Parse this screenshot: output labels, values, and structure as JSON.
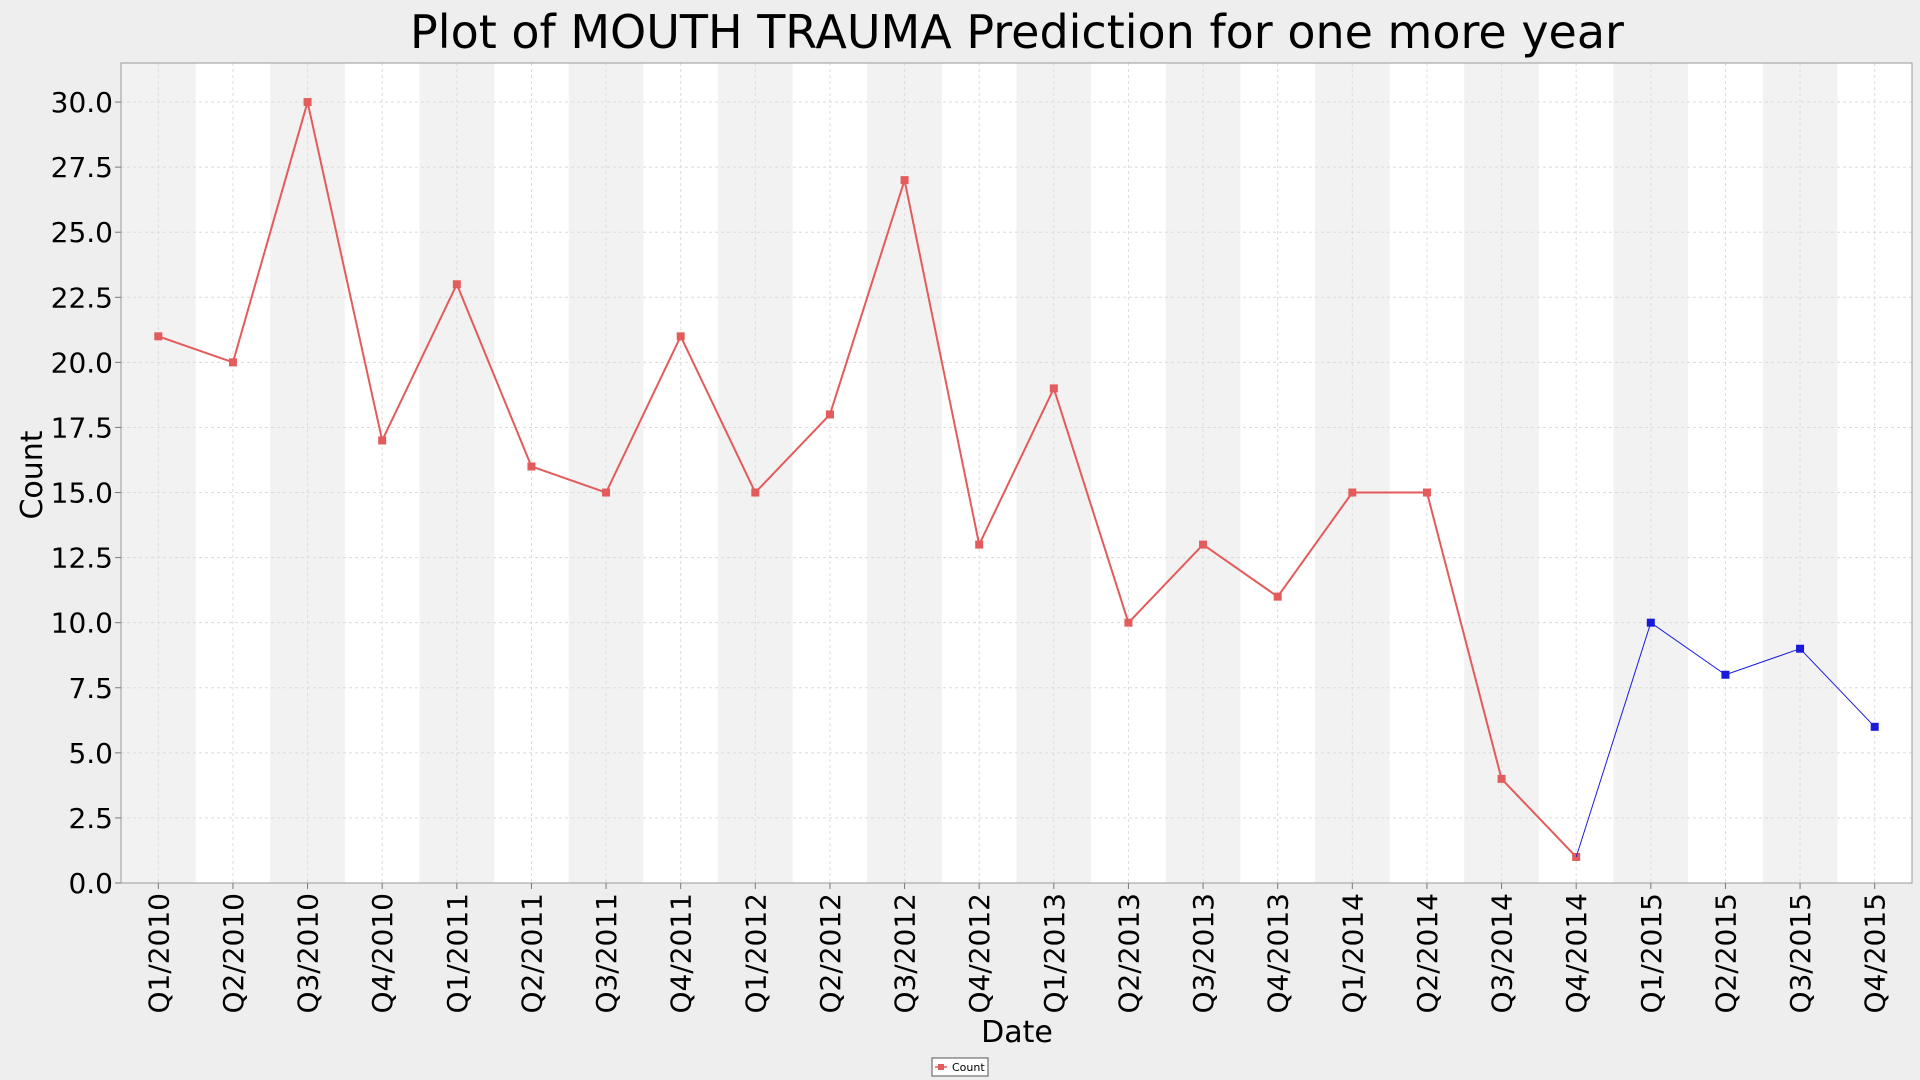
{
  "chart_data": {
    "type": "line",
    "title": "Plot of MOUTH TRAUMA Prediction for one more year",
    "xlabel": "Date",
    "ylabel": "Count",
    "ylim": [
      0,
      31.5
    ],
    "yticks": [
      "0.0",
      "2.5",
      "5.0",
      "7.5",
      "10.0",
      "12.5",
      "15.0",
      "17.5",
      "20.0",
      "22.5",
      "25.0",
      "27.5",
      "30.0"
    ],
    "categories": [
      "Q1/2010",
      "Q2/2010",
      "Q3/2010",
      "Q4/2010",
      "Q1/2011",
      "Q2/2011",
      "Q3/2011",
      "Q4/2011",
      "Q1/2012",
      "Q2/2012",
      "Q3/2012",
      "Q4/2012",
      "Q1/2013",
      "Q2/2013",
      "Q3/2013",
      "Q4/2013",
      "Q1/2014",
      "Q2/2014",
      "Q3/2014",
      "Q4/2014",
      "Q1/2015",
      "Q2/2015",
      "Q3/2015",
      "Q4/2015"
    ],
    "series": [
      {
        "name": "Count",
        "color": "#e35b5b",
        "values": [
          21,
          20,
          30,
          17,
          23,
          16,
          15,
          21,
          15,
          18,
          27,
          13,
          19,
          10,
          13,
          11,
          15,
          15,
          4,
          1,
          null,
          null,
          null,
          null
        ]
      },
      {
        "color": "#1a1adb",
        "values": [
          null,
          null,
          null,
          null,
          null,
          null,
          null,
          null,
          null,
          null,
          null,
          null,
          null,
          null,
          null,
          null,
          null,
          null,
          null,
          1,
          10,
          8,
          9,
          6
        ]
      }
    ],
    "grid": true,
    "legend_position": "bottom-center"
  }
}
